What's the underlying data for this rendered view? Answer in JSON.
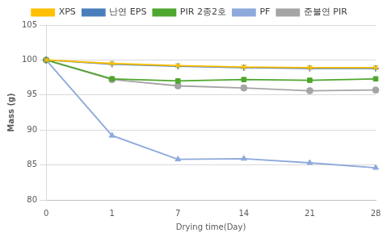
{
  "chart_data": {
    "type": "line",
    "x_label": "Drying time(Day)",
    "y_label": "Mass (g)",
    "categories": [
      "0",
      "1",
      "7",
      "14",
      "21",
      "28"
    ],
    "series": [
      {
        "name": "XPS",
        "color": "#ffc000",
        "marker": "x",
        "values": [
          100,
          99.5,
          99.2,
          99.0,
          98.9,
          98.9
        ]
      },
      {
        "name": "난연 EPS",
        "color": "#4a7ebb",
        "marker": "plus",
        "values": [
          100,
          99.4,
          99.1,
          98.9,
          98.8,
          98.8
        ]
      },
      {
        "name": "PIR 2종2호",
        "color": "#4ea72e",
        "marker": "square",
        "values": [
          100,
          97.3,
          97.0,
          97.2,
          97.1,
          97.3
        ]
      },
      {
        "name": "PF",
        "color": "#8ea9db",
        "marker": "triangle",
        "values": [
          100,
          89.2,
          85.8,
          85.9,
          85.3,
          84.6
        ]
      },
      {
        "name": "준불연 PIR",
        "color": "#a5a5a5",
        "marker": "circle",
        "values": [
          100,
          97.2,
          96.3,
          96.0,
          95.6,
          95.7
        ]
      }
    ],
    "ylim": [
      80,
      105
    ],
    "yticks": [
      80,
      85,
      90,
      95,
      100,
      105
    ],
    "grid": true,
    "legend": "top"
  }
}
